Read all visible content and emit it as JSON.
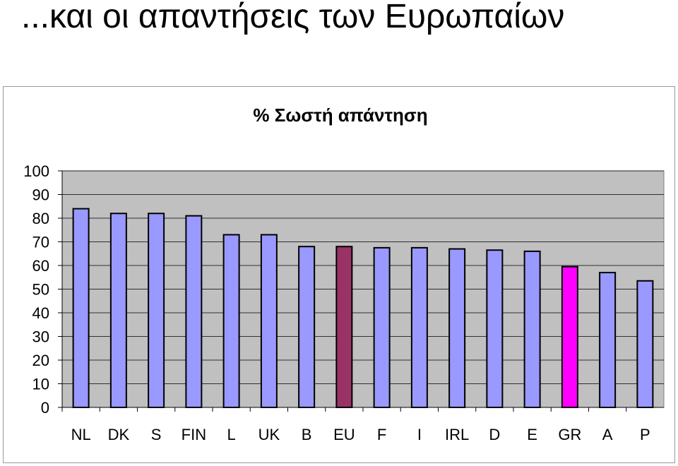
{
  "slide": {
    "title": "...και οι απαντήσεις των Ευρωπαίων"
  },
  "colors": {
    "default_bar": "#9999ff",
    "eu_bar": "#993366",
    "gr_bar": "#ff00ff",
    "plot_bg": "#c0c0c0",
    "grid": "#000000"
  },
  "chart_data": {
    "type": "bar",
    "title": "% Σωστή απάντηση",
    "xlabel": "",
    "ylabel": "",
    "ylim": [
      0,
      100
    ],
    "yticks": [
      0,
      10,
      20,
      30,
      40,
      50,
      60,
      70,
      80,
      90,
      100
    ],
    "grid": true,
    "legend": "none",
    "categories": [
      "NL",
      "DK",
      "S",
      "FIN",
      "L",
      "UK",
      "B",
      "EU",
      "F",
      "I",
      "IRL",
      "D",
      "E",
      "GR",
      "A",
      "P"
    ],
    "values": [
      84,
      82,
      82,
      81,
      73,
      73,
      68,
      68,
      67.5,
      67.5,
      67,
      66.5,
      66,
      59.5,
      57,
      53.5
    ],
    "highlight": {
      "EU": "#993366",
      "GR": "#ff00ff"
    }
  }
}
